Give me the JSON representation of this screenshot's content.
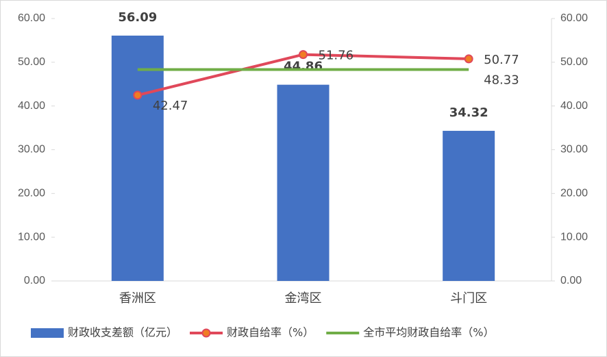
{
  "chart_data": {
    "type": "combo",
    "categories": [
      "香洲区",
      "金湾区",
      "斗门区"
    ],
    "series": [
      {
        "name": "财政收支差额（亿元）",
        "type": "bar",
        "color": "#4472c4",
        "values": [
          56.09,
          44.86,
          34.32
        ]
      },
      {
        "name": "财政自给率（%）",
        "type": "line",
        "axis": "y2",
        "color": "#e0485a",
        "marker_color": "#f07d23",
        "values": [
          42.47,
          51.76,
          50.77
        ]
      },
      {
        "name": "全市平均财政自给率（%）",
        "type": "line",
        "axis": "y2",
        "color": "#70ad47",
        "data_labels": "last",
        "values": [
          48.33,
          48.33,
          48.33
        ]
      }
    ],
    "ylim": [
      0,
      60
    ],
    "yticks": [
      {
        "value": 0,
        "label": "0.00"
      },
      {
        "value": 10,
        "label": "10.00"
      },
      {
        "value": 20,
        "label": "20.00"
      },
      {
        "value": 30,
        "label": "30.00"
      },
      {
        "value": 40,
        "label": "40.00"
      },
      {
        "value": 50,
        "label": "50.00"
      },
      {
        "value": 60,
        "label": "60.00"
      }
    ],
    "y2lim": [
      0,
      60
    ],
    "y2ticks": [
      {
        "value": 0,
        "label": "0.00"
      },
      {
        "value": 10,
        "label": "10.00"
      },
      {
        "value": 20,
        "label": "20.00"
      },
      {
        "value": 30,
        "label": "30.00"
      },
      {
        "value": 40,
        "label": "40.00"
      },
      {
        "value": 50,
        "label": "50.00"
      },
      {
        "value": 60,
        "label": "60.00"
      }
    ],
    "legend": "bottom"
  }
}
